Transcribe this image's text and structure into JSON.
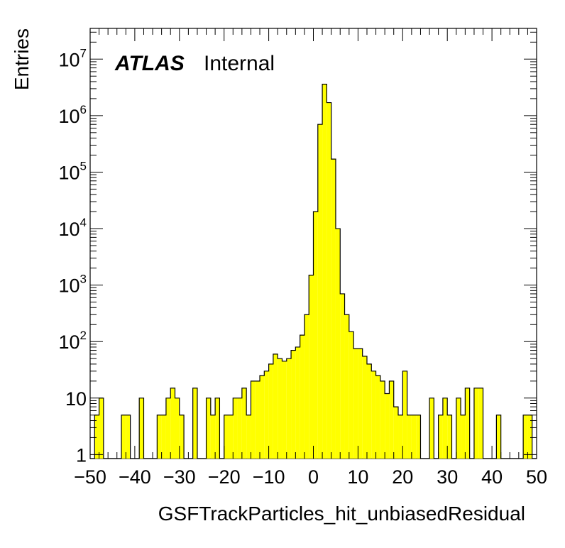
{
  "chart_data": {
    "type": "bar",
    "histogram": true,
    "xlabel": "GSFTrackParticles_hit_unbiasedResidual",
    "ylabel": "Entries",
    "xlim": [
      -50,
      50
    ],
    "ylim": [
      0.85,
      35000000
    ],
    "y_scale": "log",
    "bin_width": 1,
    "bin_start": -50,
    "fill_color": "#ffff00",
    "line_color": "#000000",
    "x_tick_labels": [
      "−50",
      "−40",
      "−30",
      "−20",
      "−10",
      "0",
      "10",
      "20",
      "30",
      "40",
      "50"
    ],
    "x_ticks": [
      -50,
      -40,
      -30,
      -20,
      -10,
      0,
      10,
      20,
      30,
      40,
      50
    ],
    "y_ticks": [
      {
        "value": 1,
        "base": "1",
        "exp": ""
      },
      {
        "value": 10,
        "base": "10",
        "exp": ""
      },
      {
        "value": 100,
        "base": "10",
        "exp": "2"
      },
      {
        "value": 1000,
        "base": "10",
        "exp": "3"
      },
      {
        "value": 10000,
        "base": "10",
        "exp": "4"
      },
      {
        "value": 100000,
        "base": "10",
        "exp": "5"
      },
      {
        "value": 1000000,
        "base": "10",
        "exp": "6"
      },
      {
        "value": 10000000,
        "base": "10",
        "exp": "7"
      }
    ],
    "values": [
      0,
      5,
      10,
      0,
      0,
      0,
      0,
      5,
      5,
      0,
      0,
      10,
      0,
      0,
      0,
      5,
      5,
      10,
      15,
      10,
      5,
      0,
      0,
      15,
      0,
      0,
      10,
      5,
      10,
      0,
      5,
      5,
      10,
      10,
      15,
      5,
      20,
      20,
      25,
      30,
      40,
      60,
      50,
      45,
      50,
      70,
      80,
      130,
      300,
      1500,
      20000,
      700000,
      3600000,
      1700000,
      170000,
      10000,
      700,
      300,
      150,
      75,
      75,
      55,
      40,
      30,
      25,
      20,
      12,
      20,
      7,
      5,
      30,
      5,
      5,
      5,
      0,
      0,
      10,
      0,
      5,
      10,
      5,
      0,
      10,
      5,
      15,
      0,
      15,
      15,
      0,
      0,
      0,
      5,
      0,
      0,
      0,
      0,
      0,
      5,
      5,
      0
    ],
    "annotations": {
      "atlas": "ATLAS",
      "label": "Internal"
    }
  }
}
